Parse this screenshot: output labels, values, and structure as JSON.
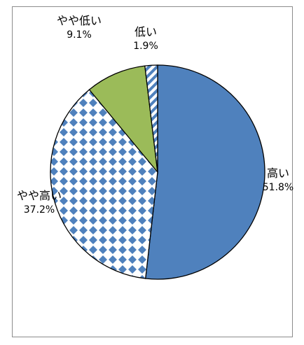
{
  "chart_data": {
    "type": "pie",
    "categories": [
      "高い",
      "やや高い",
      "やや低い",
      "低い"
    ],
    "values": [
      51.8,
      37.2,
      9.1,
      1.9
    ],
    "value_labels": [
      "51.8%",
      "37.2%",
      "9.1%",
      "1.9%"
    ],
    "slice_styles": [
      {
        "fill": "solid",
        "color": "#4f81bd"
      },
      {
        "fill": "diamond-checker",
        "color": "#4f81bd",
        "background": "#ffffff"
      },
      {
        "fill": "solid",
        "color": "#9bbb59"
      },
      {
        "fill": "diagonal-stripes",
        "color": "#4f81bd",
        "background": "#ffffff"
      }
    ],
    "start_angle_deg": 0,
    "direction": "clockwise",
    "title": "",
    "legend": "none",
    "slice_border_color": "#000000"
  }
}
